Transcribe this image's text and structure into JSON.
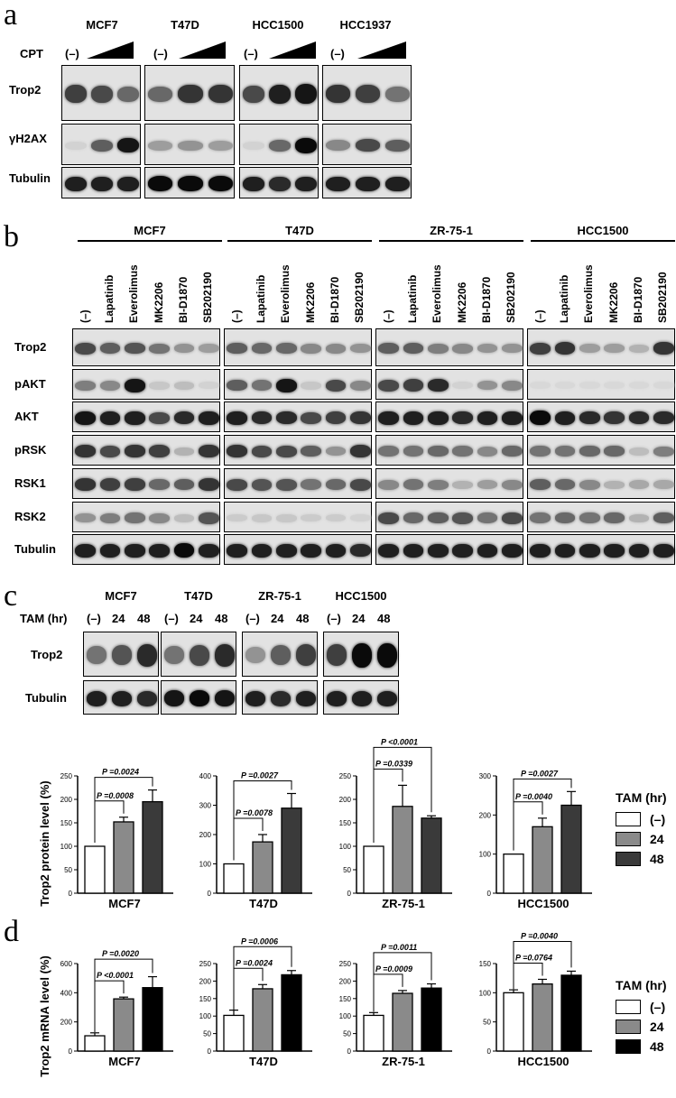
{
  "panel_a": {
    "label": "a",
    "cell_lines": [
      "MCF7",
      "T47D",
      "HCC1500",
      "HCC1937"
    ],
    "treatment_label": "CPT",
    "control_label": "(–)",
    "rows": [
      "Trop2",
      "γH2AX",
      "Tubulin"
    ]
  },
  "panel_b": {
    "label": "b",
    "cell_lines": [
      "MCF7",
      "T47D",
      "ZR-75-1",
      "HCC1500"
    ],
    "lanes": [
      "(–)",
      "Lapatinib",
      "Everolimus",
      "MK2206",
      "BI-D1870",
      "SB202190"
    ],
    "rows": [
      "Trop2",
      "pAKT",
      "AKT",
      "pRSK",
      "RSK1",
      "RSK2",
      "Tubulin"
    ]
  },
  "panel_c": {
    "label": "c",
    "cell_lines": [
      "MCF7",
      "T47D",
      "ZR-75-1",
      "HCC1500"
    ],
    "treatment_label": "TAM (hr)",
    "lanes": [
      "(–)",
      "24",
      "48"
    ],
    "rows": [
      "Trop2",
      "Tubulin"
    ]
  },
  "panel_d": {
    "label": "d"
  },
  "legend": {
    "title": "TAM (hr)",
    "entries": [
      "(–)",
      "24",
      "48"
    ]
  },
  "colors": {
    "control": "#ffffff",
    "hr24": "#8a8a8a",
    "hr48_c": "#3a3a3a",
    "hr48_d": "#000000",
    "blot_bg": "#e2e2e2"
  },
  "chart_data": [
    {
      "type": "bar",
      "panel": "c",
      "ylabel": "Trop2 protein level (%)",
      "xlabel": "MCF7",
      "categories": [
        "(–)",
        "24",
        "48"
      ],
      "values": [
        100,
        152,
        195
      ],
      "errors": [
        0,
        10,
        25
      ],
      "ylim": [
        0,
        250
      ],
      "yticks": [
        "0",
        "50",
        "100",
        "150",
        "200",
        "250"
      ],
      "pvalues": [
        {
          "text": "P =0.0008"
        },
        {
          "text": "P =0.0024"
        }
      ]
    },
    {
      "type": "bar",
      "panel": "c",
      "ylabel": "",
      "xlabel": "T47D",
      "categories": [
        "(–)",
        "24",
        "48"
      ],
      "values": [
        100,
        175,
        290
      ],
      "errors": [
        0,
        25,
        50
      ],
      "ylim": [
        0,
        400
      ],
      "yticks": [
        "0",
        "100",
        "200",
        "300",
        "400"
      ],
      "pvalues": [
        {
          "text": "P =0.0078"
        },
        {
          "text": "P =0.0027"
        }
      ]
    },
    {
      "type": "bar",
      "panel": "c",
      "ylabel": "",
      "xlabel": "ZR-75-1",
      "categories": [
        "(–)",
        "24",
        "48"
      ],
      "values": [
        100,
        185,
        160
      ],
      "errors": [
        0,
        45,
        5
      ],
      "ylim": [
        0,
        250
      ],
      "yticks": [
        "0",
        "50",
        "100",
        "150",
        "200",
        "250"
      ],
      "pvalues": [
        {
          "text": "P =0.0339"
        },
        {
          "text": "P <0.0001"
        }
      ]
    },
    {
      "type": "bar",
      "panel": "c",
      "ylabel": "",
      "xlabel": "HCC1500",
      "categories": [
        "(–)",
        "24",
        "48"
      ],
      "values": [
        100,
        170,
        225
      ],
      "errors": [
        0,
        22,
        35
      ],
      "ylim": [
        0,
        300
      ],
      "yticks": [
        "0",
        "100",
        "200",
        "300"
      ],
      "pvalues": [
        {
          "text": "P =0.0040"
        },
        {
          "text": "P =0.0027"
        }
      ]
    },
    {
      "type": "bar",
      "panel": "d",
      "ylabel": "Trop2 mRNA level (%)",
      "xlabel": "MCF7",
      "categories": [
        "(–)",
        "24",
        "48"
      ],
      "values": [
        105,
        358,
        435
      ],
      "errors": [
        20,
        12,
        75
      ],
      "ylim": [
        0,
        600
      ],
      "yticks": [
        "0",
        "200",
        "400",
        "600"
      ],
      "pvalues": [
        {
          "text": "P <0.0001"
        },
        {
          "text": "P =0.0020"
        }
      ]
    },
    {
      "type": "bar",
      "panel": "d",
      "ylabel": "",
      "xlabel": "T47D",
      "categories": [
        "(–)",
        "24",
        "48"
      ],
      "values": [
        102,
        178,
        218
      ],
      "errors": [
        15,
        12,
        12
      ],
      "ylim": [
        0,
        250
      ],
      "yticks": [
        "0",
        "50",
        "100",
        "150",
        "200",
        "250"
      ],
      "pvalues": [
        {
          "text": "P =0.0024"
        },
        {
          "text": "P =0.0006"
        }
      ]
    },
    {
      "type": "bar",
      "panel": "d",
      "ylabel": "",
      "xlabel": "ZR-75-1",
      "categories": [
        "(–)",
        "24",
        "48"
      ],
      "values": [
        102,
        165,
        180
      ],
      "errors": [
        8,
        8,
        12
      ],
      "ylim": [
        0,
        250
      ],
      "yticks": [
        "0",
        "50",
        "100",
        "150",
        "200",
        "250"
      ],
      "pvalues": [
        {
          "text": "P =0.0009"
        },
        {
          "text": "P =0.0011"
        }
      ]
    },
    {
      "type": "bar",
      "panel": "d",
      "ylabel": "",
      "xlabel": "HCC1500",
      "categories": [
        "(–)",
        "24",
        "48"
      ],
      "values": [
        100,
        115,
        130
      ],
      "errors": [
        5,
        8,
        7
      ],
      "ylim": [
        0,
        150
      ],
      "yticks": [
        "0",
        "50",
        "100",
        "150"
      ],
      "pvalues": [
        {
          "text": "P =0.0764"
        },
        {
          "text": "P =0.0040"
        }
      ]
    }
  ]
}
